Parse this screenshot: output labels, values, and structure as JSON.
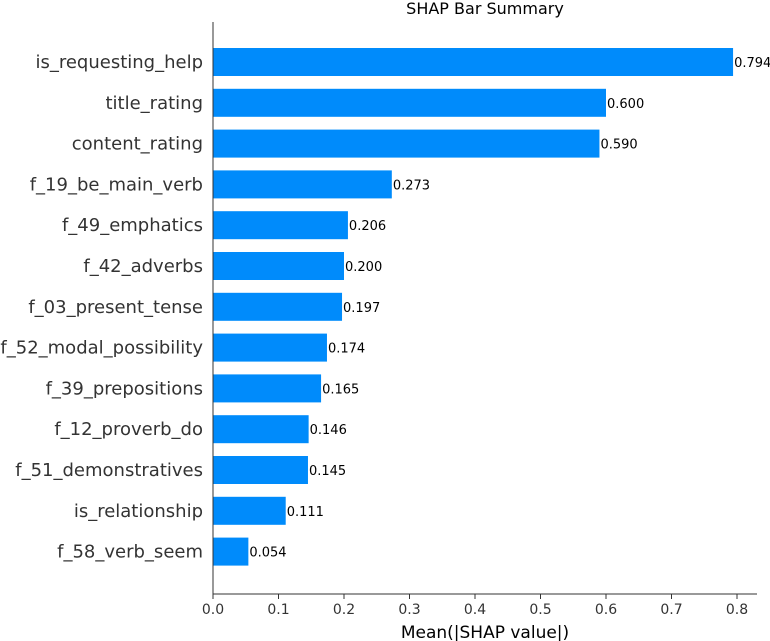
{
  "chart_data": {
    "type": "bar",
    "orientation": "horizontal",
    "title": "SHAP Bar Summary",
    "xlabel": "Mean(|SHAP value|)",
    "ylabel": "",
    "xlim": [
      0.0,
      0.83
    ],
    "grid": false,
    "bar_color": "#008bfb",
    "xticks": [
      "0.0",
      "0.1",
      "0.2",
      "0.3",
      "0.4",
      "0.5",
      "0.6",
      "0.7",
      "0.8"
    ],
    "categories": [
      "is_requesting_help",
      "title_rating",
      "content_rating",
      "f_19_be_main_verb",
      "f_49_emphatics",
      "f_42_adverbs",
      "f_03_present_tense",
      "f_52_modal_possibility",
      "f_39_prepositions",
      "f_12_proverb_do",
      "f_51_demonstratives",
      "is_relationship",
      "f_58_verb_seem"
    ],
    "values": [
      0.794,
      0.6,
      0.59,
      0.273,
      0.206,
      0.2,
      0.197,
      0.174,
      0.165,
      0.146,
      0.145,
      0.111,
      0.054
    ],
    "value_labels": [
      "0.794",
      "0.600",
      "0.590",
      "0.273",
      "0.206",
      "0.200",
      "0.197",
      "0.174",
      "0.165",
      "0.146",
      "0.145",
      "0.111",
      "0.054"
    ]
  }
}
